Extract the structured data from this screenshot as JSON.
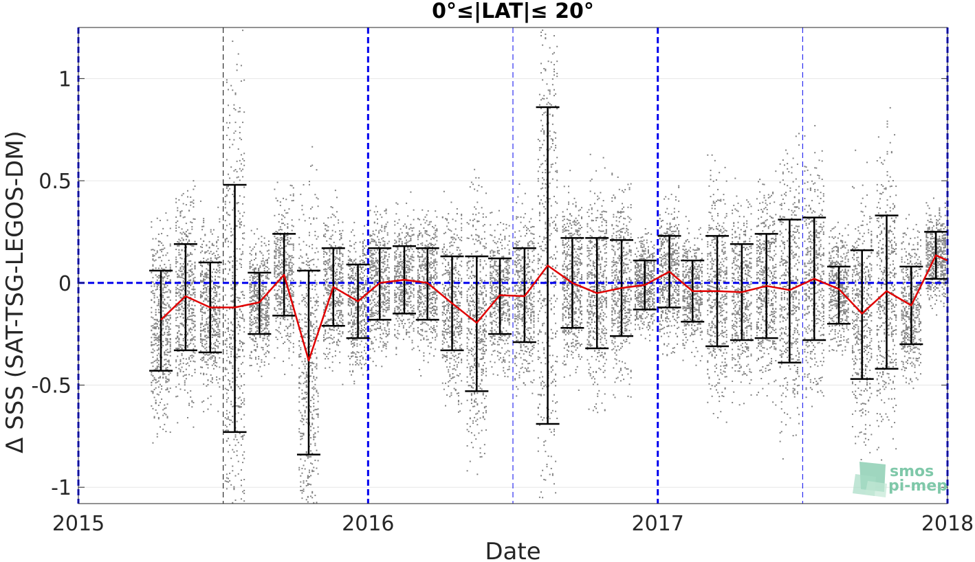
{
  "chart_data": {
    "type": "scatter",
    "title": "0°≤|LAT|≤ 20°",
    "xlabel": "Date",
    "ylabel": "Δ SSS (SAT-TSG-LEGOS-DM)",
    "xlim": [
      2015.0,
      2018.0
    ],
    "ylim": [
      -1.08,
      1.25
    ],
    "xtick_values": [
      2015,
      2016,
      2017,
      2018
    ],
    "xtick_labels": [
      "2015",
      "2016",
      "2017",
      "2018"
    ],
    "ytick_values": [
      -1,
      -0.5,
      0,
      0.5,
      1
    ],
    "ytick_labels": [
      "-1",
      "-0.5",
      "0",
      "0.5",
      "1"
    ],
    "grid": true,
    "reference_line_y": 0,
    "year_boundaries": [
      2015.0,
      2016.0,
      2017.0,
      2018.0
    ],
    "mid_year_lines": [
      2015.5,
      2016.5,
      2017.5
    ],
    "colors": {
      "scatter": "#808080",
      "mean_line": "#e00000",
      "error_bars": "#000000",
      "reference": "#0000ee",
      "grid": "#e6e6e6"
    },
    "monthly_stats": [
      {
        "x": 2015.285,
        "mean": -0.18,
        "low": -0.43,
        "high": 0.06
      },
      {
        "x": 2015.37,
        "mean": -0.065,
        "low": -0.33,
        "high": 0.19
      },
      {
        "x": 2015.455,
        "mean": -0.12,
        "low": -0.34,
        "high": 0.1
      },
      {
        "x": 2015.54,
        "mean": -0.12,
        "low": -0.73,
        "high": 0.48
      },
      {
        "x": 2015.625,
        "mean": -0.095,
        "low": -0.25,
        "high": 0.05
      },
      {
        "x": 2015.71,
        "mean": 0.04,
        "low": -0.16,
        "high": 0.24
      },
      {
        "x": 2015.795,
        "mean": -0.38,
        "low": -0.84,
        "high": 0.06
      },
      {
        "x": 2015.88,
        "mean": -0.02,
        "low": -0.21,
        "high": 0.17
      },
      {
        "x": 2015.965,
        "mean": -0.09,
        "low": -0.27,
        "high": 0.09
      },
      {
        "x": 2016.04,
        "mean": 0.0,
        "low": -0.18,
        "high": 0.17
      },
      {
        "x": 2016.125,
        "mean": 0.015,
        "low": -0.15,
        "high": 0.18
      },
      {
        "x": 2016.205,
        "mean": 0.0,
        "low": -0.18,
        "high": 0.17
      },
      {
        "x": 2016.29,
        "mean": -0.1,
        "low": -0.33,
        "high": 0.13
      },
      {
        "x": 2016.375,
        "mean": -0.195,
        "low": -0.53,
        "high": 0.13
      },
      {
        "x": 2016.455,
        "mean": -0.06,
        "low": -0.25,
        "high": 0.12
      },
      {
        "x": 2016.54,
        "mean": -0.065,
        "low": -0.29,
        "high": 0.17
      },
      {
        "x": 2016.62,
        "mean": 0.085,
        "low": -0.69,
        "high": 0.86
      },
      {
        "x": 2016.705,
        "mean": 0.0,
        "low": -0.22,
        "high": 0.22
      },
      {
        "x": 2016.79,
        "mean": -0.05,
        "low": -0.32,
        "high": 0.22
      },
      {
        "x": 2016.875,
        "mean": -0.025,
        "low": -0.26,
        "high": 0.21
      },
      {
        "x": 2016.955,
        "mean": -0.01,
        "low": -0.13,
        "high": 0.11
      },
      {
        "x": 2017.04,
        "mean": 0.055,
        "low": -0.12,
        "high": 0.23
      },
      {
        "x": 2017.12,
        "mean": -0.04,
        "low": -0.19,
        "high": 0.11
      },
      {
        "x": 2017.205,
        "mean": -0.04,
        "low": -0.31,
        "high": 0.23
      },
      {
        "x": 2017.29,
        "mean": -0.045,
        "low": -0.28,
        "high": 0.19
      },
      {
        "x": 2017.375,
        "mean": -0.015,
        "low": -0.27,
        "high": 0.24
      },
      {
        "x": 2017.455,
        "mean": -0.035,
        "low": -0.39,
        "high": 0.31
      },
      {
        "x": 2017.54,
        "mean": 0.02,
        "low": -0.28,
        "high": 0.32
      },
      {
        "x": 2017.625,
        "mean": -0.03,
        "low": -0.2,
        "high": 0.08
      },
      {
        "x": 2017.705,
        "mean": -0.15,
        "low": -0.47,
        "high": 0.16
      },
      {
        "x": 2017.79,
        "mean": -0.04,
        "low": -0.42,
        "high": 0.33
      },
      {
        "x": 2017.875,
        "mean": -0.11,
        "low": -0.3,
        "high": 0.08
      },
      {
        "x": 2017.96,
        "mean": 0.135,
        "low": 0.02,
        "high": 0.25
      },
      {
        "x": 2018.0,
        "mean": 0.11
      }
    ]
  },
  "logo": {
    "line1": "smos",
    "line2": "pi-mep"
  }
}
